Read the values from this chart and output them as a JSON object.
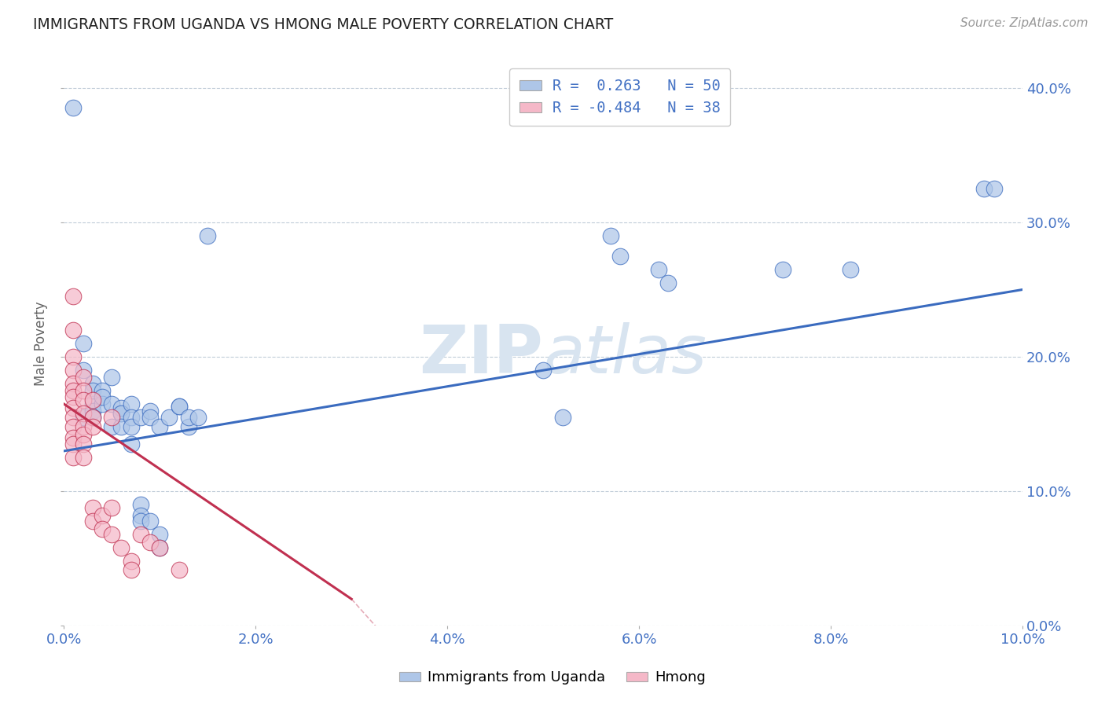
{
  "title": "IMMIGRANTS FROM UGANDA VS HMONG MALE POVERTY CORRELATION CHART",
  "source": "Source: ZipAtlas.com",
  "ylabel": "Male Poverty",
  "legend_label1": "Immigrants from Uganda",
  "legend_label2": "Hmong",
  "r1": "0.263",
  "n1": "50",
  "r2": "-0.484",
  "n2": "38",
  "xlim": [
    0.0,
    0.1
  ],
  "ylim": [
    0.0,
    0.42
  ],
  "xticks": [
    0.0,
    0.02,
    0.04,
    0.06,
    0.08,
    0.1
  ],
  "yticks": [
    0.0,
    0.1,
    0.2,
    0.3,
    0.4
  ],
  "color_blue": "#aec6e8",
  "color_pink": "#f5b8c8",
  "line_blue": "#3a6bbf",
  "line_pink": "#c03050",
  "watermark_color": "#d8e4f0",
  "title_color": "#222222",
  "tick_label_color": "#4472c4",
  "blue_scatter": [
    [
      0.001,
      0.385
    ],
    [
      0.002,
      0.155
    ],
    [
      0.015,
      0.29
    ],
    [
      0.002,
      0.21
    ],
    [
      0.002,
      0.19
    ],
    [
      0.003,
      0.165
    ],
    [
      0.003,
      0.18
    ],
    [
      0.003,
      0.175
    ],
    [
      0.003,
      0.16
    ],
    [
      0.003,
      0.155
    ],
    [
      0.004,
      0.175
    ],
    [
      0.004,
      0.165
    ],
    [
      0.004,
      0.17
    ],
    [
      0.005,
      0.165
    ],
    [
      0.005,
      0.185
    ],
    [
      0.005,
      0.148
    ],
    [
      0.006,
      0.158
    ],
    [
      0.006,
      0.162
    ],
    [
      0.006,
      0.158
    ],
    [
      0.006,
      0.148
    ],
    [
      0.007,
      0.165
    ],
    [
      0.007,
      0.155
    ],
    [
      0.007,
      0.148
    ],
    [
      0.007,
      0.135
    ],
    [
      0.008,
      0.155
    ],
    [
      0.008,
      0.09
    ],
    [
      0.008,
      0.082
    ],
    [
      0.008,
      0.078
    ],
    [
      0.009,
      0.16
    ],
    [
      0.009,
      0.155
    ],
    [
      0.009,
      0.078
    ],
    [
      0.01,
      0.148
    ],
    [
      0.01,
      0.068
    ],
    [
      0.01,
      0.058
    ],
    [
      0.011,
      0.155
    ],
    [
      0.012,
      0.163
    ],
    [
      0.012,
      0.163
    ],
    [
      0.013,
      0.148
    ],
    [
      0.013,
      0.155
    ],
    [
      0.014,
      0.155
    ],
    [
      0.05,
      0.19
    ],
    [
      0.052,
      0.155
    ],
    [
      0.057,
      0.29
    ],
    [
      0.058,
      0.275
    ],
    [
      0.062,
      0.265
    ],
    [
      0.063,
      0.255
    ],
    [
      0.075,
      0.265
    ],
    [
      0.082,
      0.265
    ],
    [
      0.096,
      0.325
    ],
    [
      0.097,
      0.325
    ]
  ],
  "pink_scatter": [
    [
      0.001,
      0.245
    ],
    [
      0.001,
      0.22
    ],
    [
      0.001,
      0.2
    ],
    [
      0.001,
      0.19
    ],
    [
      0.001,
      0.18
    ],
    [
      0.001,
      0.175
    ],
    [
      0.001,
      0.17
    ],
    [
      0.001,
      0.162
    ],
    [
      0.001,
      0.155
    ],
    [
      0.001,
      0.148
    ],
    [
      0.001,
      0.14
    ],
    [
      0.001,
      0.135
    ],
    [
      0.001,
      0.125
    ],
    [
      0.002,
      0.185
    ],
    [
      0.002,
      0.175
    ],
    [
      0.002,
      0.168
    ],
    [
      0.002,
      0.158
    ],
    [
      0.002,
      0.148
    ],
    [
      0.002,
      0.142
    ],
    [
      0.002,
      0.135
    ],
    [
      0.002,
      0.125
    ],
    [
      0.003,
      0.168
    ],
    [
      0.003,
      0.155
    ],
    [
      0.003,
      0.148
    ],
    [
      0.003,
      0.088
    ],
    [
      0.003,
      0.078
    ],
    [
      0.004,
      0.082
    ],
    [
      0.004,
      0.072
    ],
    [
      0.005,
      0.155
    ],
    [
      0.005,
      0.088
    ],
    [
      0.005,
      0.068
    ],
    [
      0.006,
      0.058
    ],
    [
      0.007,
      0.048
    ],
    [
      0.007,
      0.042
    ],
    [
      0.008,
      0.068
    ],
    [
      0.009,
      0.062
    ],
    [
      0.01,
      0.058
    ],
    [
      0.012,
      0.042
    ]
  ],
  "blue_line_x": [
    0.0,
    0.1
  ],
  "blue_line_y": [
    0.13,
    0.25
  ],
  "pink_line_x": [
    0.0,
    0.03
  ],
  "pink_line_y": [
    0.165,
    0.02
  ]
}
